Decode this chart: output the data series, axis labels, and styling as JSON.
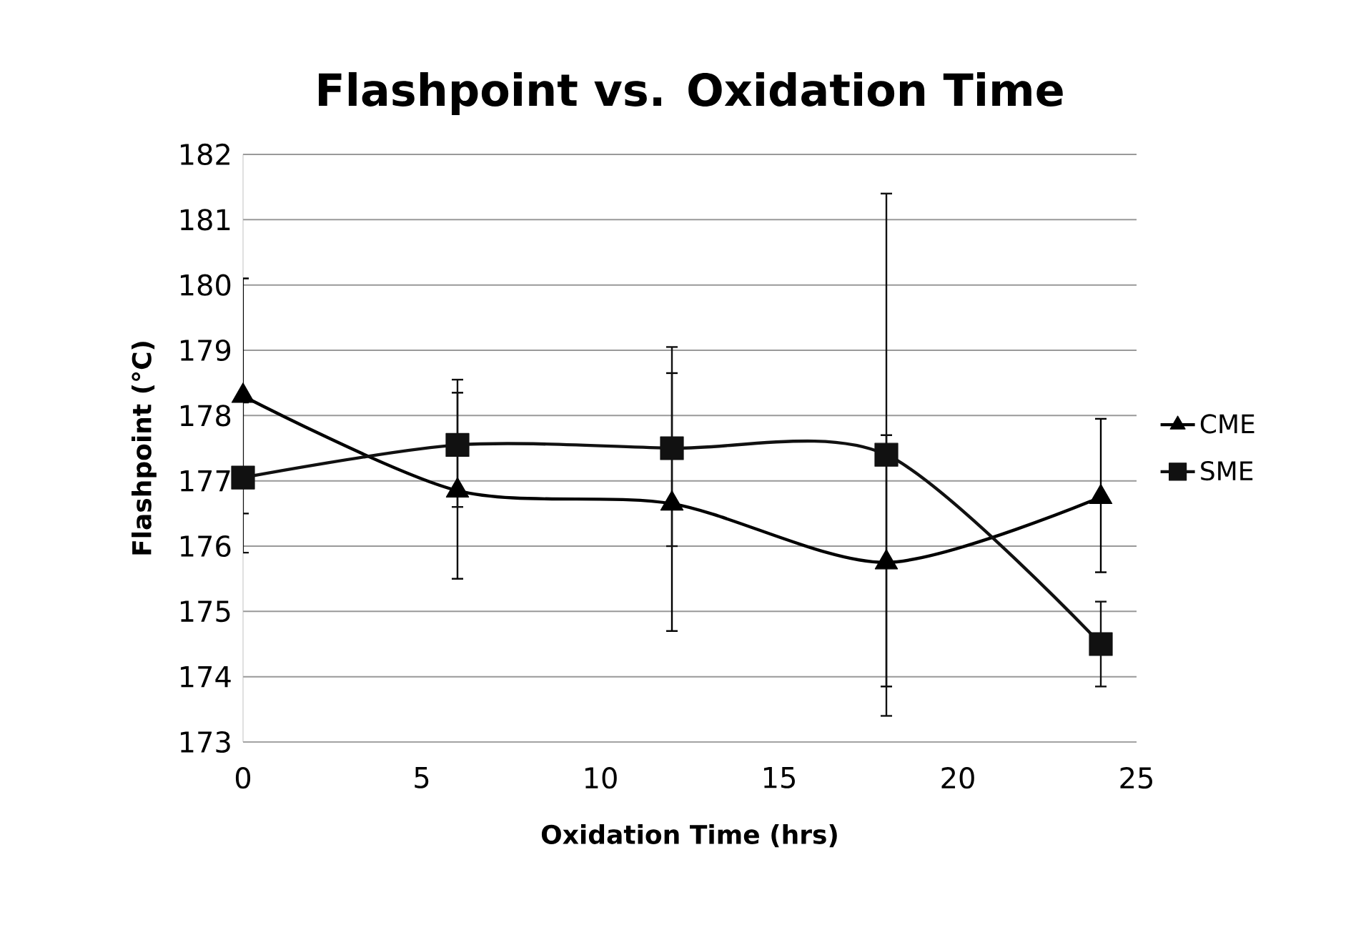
{
  "chart_data": {
    "type": "line",
    "title": "Flashpoint vs. Oxidation Time",
    "xlabel": "Oxidation Time (hrs)",
    "ylabel": "Flashpoint (°C)",
    "xlim": [
      0,
      25
    ],
    "xticks": [
      0,
      5,
      10,
      15,
      20,
      25
    ],
    "ylim": [
      173,
      182
    ],
    "yticks": [
      173,
      174,
      175,
      176,
      177,
      178,
      179,
      180,
      181,
      182
    ],
    "grid": "y",
    "legend": "right",
    "line_style": "solid",
    "series": [
      {
        "name": "CME",
        "color": "#000000",
        "marker": "triangle",
        "x": [
          0,
          6,
          12,
          18,
          24
        ],
        "values": [
          178.3,
          176.85,
          176.65,
          175.75,
          176.75
        ],
        "errors": [
          [
            176.5,
            180.1
          ],
          [
            175.5,
            178.35
          ],
          [
            174.7,
            178.65
          ],
          [
            173.85,
            177.7
          ],
          [
            175.6,
            177.95
          ]
        ]
      },
      {
        "name": "SME",
        "color": "#111111",
        "marker": "square",
        "x": [
          0,
          6,
          12,
          18,
          24
        ],
        "values": [
          177.05,
          177.55,
          177.5,
          177.4,
          174.5
        ],
        "errors": [
          [
            175.9,
            178.2
          ],
          [
            176.6,
            178.55
          ],
          [
            176.0,
            179.05
          ],
          [
            173.4,
            181.4
          ],
          [
            173.85,
            175.15
          ]
        ]
      }
    ]
  }
}
